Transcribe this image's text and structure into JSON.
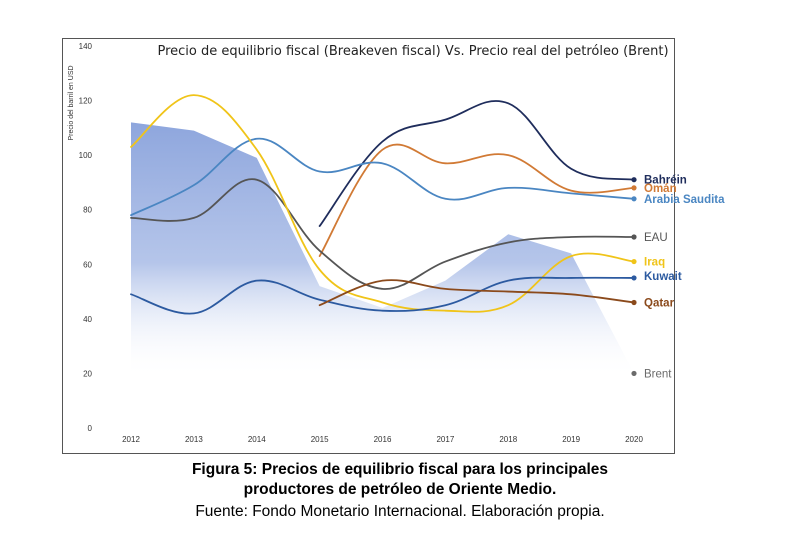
{
  "chart_data": {
    "type": "line",
    "title": "Precio de equilibrio fiscal (Breakeven fiscal)  Vs. Precio real del petróleo (Brent)",
    "ylabel": "Precio del barril en USD",
    "xlabel": "",
    "ylim": [
      0,
      140
    ],
    "yticks": [
      0,
      20,
      40,
      60,
      80,
      100,
      120,
      140
    ],
    "x": [
      "2012",
      "2013",
      "2014",
      "2015",
      "2016",
      "2017",
      "2018",
      "2019",
      "2020"
    ],
    "area": {
      "name": "Brent",
      "color": "#8fa8de",
      "values": [
        112,
        109,
        99,
        52,
        44,
        54,
        71,
        64,
        20
      ]
    },
    "series": [
      {
        "name": "Bahréin",
        "color": "#1f2d5c",
        "values": [
          null,
          null,
          null,
          74,
          105,
          113,
          119,
          95,
          91
        ]
      },
      {
        "name": "Omán",
        "color": "#d17a35",
        "values": [
          null,
          null,
          null,
          63,
          102,
          97,
          100,
          87,
          88
        ]
      },
      {
        "name": "Arabia Saudita",
        "color": "#4a86c2",
        "values": [
          78,
          89,
          106,
          94,
          97,
          84,
          88,
          86,
          84
        ]
      },
      {
        "name": "EAU",
        "color": "#555555",
        "values": [
          77,
          77,
          91,
          65,
          51,
          61,
          68,
          70,
          70
        ]
      },
      {
        "name": "Iraq",
        "color": "#f0c419",
        "values": [
          103,
          122,
          102,
          58,
          46,
          43,
          45,
          63,
          61
        ]
      },
      {
        "name": "Kuwait",
        "color": "#2c5aa0",
        "values": [
          49,
          42,
          54,
          47,
          43,
          45,
          54,
          55,
          55
        ]
      },
      {
        "name": "Qatar",
        "color": "#8b4a1c",
        "values": [
          null,
          null,
          null,
          45,
          54,
          51,
          50,
          49,
          46
        ]
      }
    ],
    "end_labels": [
      {
        "name": "Bahréin",
        "color": "#1f2d5c",
        "value": 91
      },
      {
        "name": "Omán",
        "color": "#d17a35",
        "value": 88
      },
      {
        "name": "Arabia Saudita",
        "color": "#4a86c2",
        "value": 84
      },
      {
        "name": "EAU",
        "color": "#555555",
        "value": 70
      },
      {
        "name": "Iraq",
        "color": "#f0c419",
        "value": 61
      },
      {
        "name": "Kuwait",
        "color": "#2c5aa0",
        "value": 55
      },
      {
        "name": "Qatar",
        "color": "#8b4a1c",
        "value": 46
      },
      {
        "name": "Brent",
        "color": "#6b6b6b",
        "value": 20
      }
    ]
  },
  "caption": {
    "line1_prefix": "Figura 5",
    "line1_rest": ": Precios de equilibrio fiscal para los principales",
    "line2": "productores de petróleo de Oriente Medio.",
    "line3": "Fuente: Fondo Monetario Internacional. Elaboración propia."
  }
}
